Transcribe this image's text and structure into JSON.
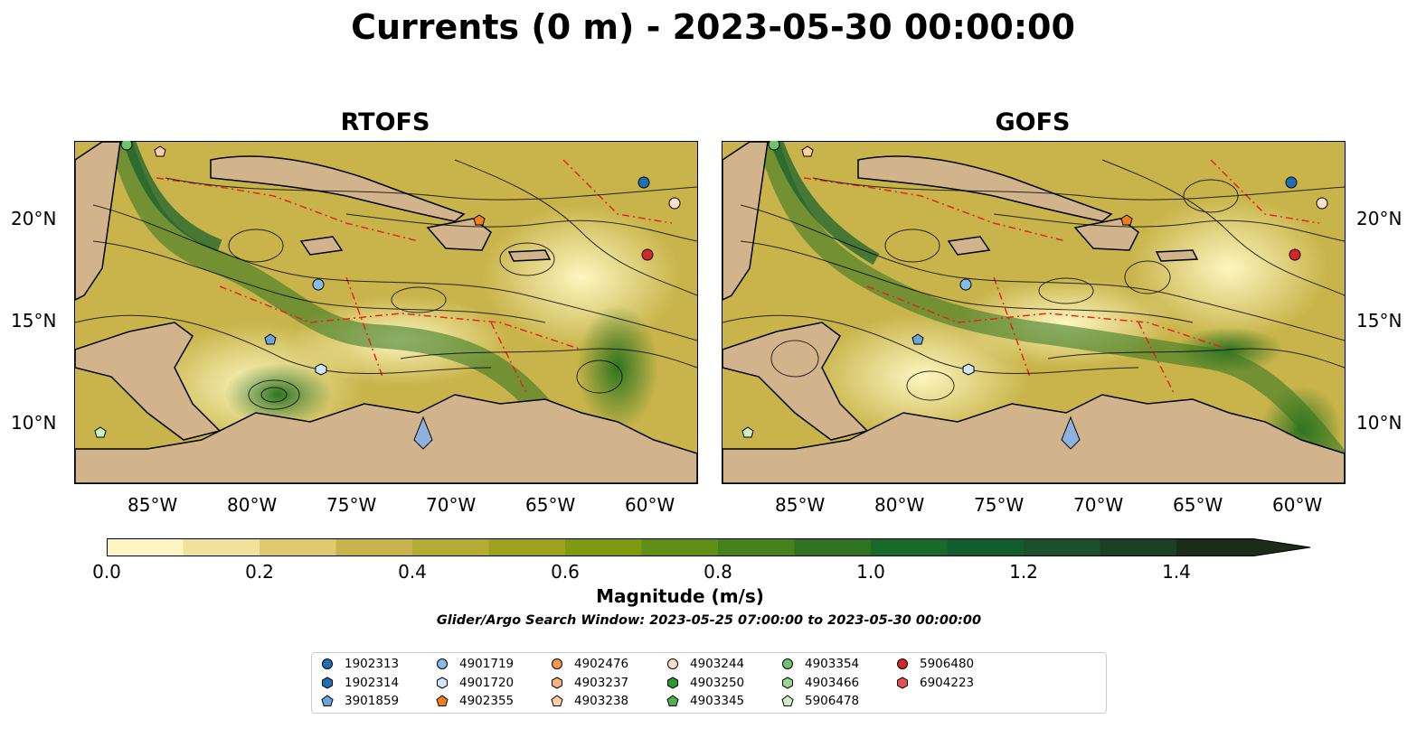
{
  "title": "Currents (0 m) - 2023-05-30 00:00:00",
  "panels": [
    {
      "name": "RTOFS"
    },
    {
      "name": "GOFS"
    }
  ],
  "lon_ticks": [
    "85°W",
    "80°W",
    "75°W",
    "70°W",
    "65°W",
    "60°W"
  ],
  "lat_ticks": [
    "20°N",
    "15°N",
    "10°N"
  ],
  "colorbar": {
    "label": "Magnitude (m/s)",
    "ticks": [
      "0.0",
      "0.2",
      "0.4",
      "0.6",
      "0.8",
      "1.0",
      "1.2",
      "1.4"
    ],
    "colors": [
      "#fdf6c0",
      "#f0e29a",
      "#dfca6c",
      "#c8b44a",
      "#b4ab34",
      "#9ea21c",
      "#7f9a11",
      "#5f8f16",
      "#46821b",
      "#2e7420",
      "#186a2a",
      "#0f5c2c",
      "#194f2a",
      "#1d3f22",
      "#1b2c18"
    ]
  },
  "subtitle": "Glider/Argo Search Window: 2023-05-25 07:00:00 to 2023-05-30 00:00:00",
  "land_color": "#d2b48c",
  "legend": [
    {
      "label": "1902313",
      "color": "#1f6fb4",
      "shape": "circle"
    },
    {
      "label": "1902314",
      "color": "#1f6fb4",
      "shape": "hexagon"
    },
    {
      "label": "3901859",
      "color": "#6aa6dc",
      "shape": "pentagon"
    },
    {
      "label": "4901719",
      "color": "#84bcea",
      "shape": "circle"
    },
    {
      "label": "4901720",
      "color": "#cfe6f8",
      "shape": "hexagon"
    },
    {
      "label": "4902355",
      "color": "#f07e1a",
      "shape": "pentagon"
    },
    {
      "label": "4902476",
      "color": "#f59a4a",
      "shape": "circle"
    },
    {
      "label": "4903237",
      "color": "#f9b27a",
      "shape": "hexagon"
    },
    {
      "label": "4903238",
      "color": "#fbcfa3",
      "shape": "pentagon"
    },
    {
      "label": "4903244",
      "color": "#fde1c8",
      "shape": "circle"
    },
    {
      "label": "4903250",
      "color": "#2c9a2c",
      "shape": "hexagon"
    },
    {
      "label": "4903345",
      "color": "#4fae4f",
      "shape": "pentagon"
    },
    {
      "label": "4903354",
      "color": "#6cc46c",
      "shape": "circle"
    },
    {
      "label": "4903466",
      "color": "#95d795",
      "shape": "hexagon"
    },
    {
      "label": "5906478",
      "color": "#cdf0c4",
      "shape": "pentagon"
    },
    {
      "label": "5906480",
      "color": "#d62728",
      "shape": "circle"
    },
    {
      "label": "6904223",
      "color": "#e8504f",
      "shape": "hexagon"
    }
  ]
}
